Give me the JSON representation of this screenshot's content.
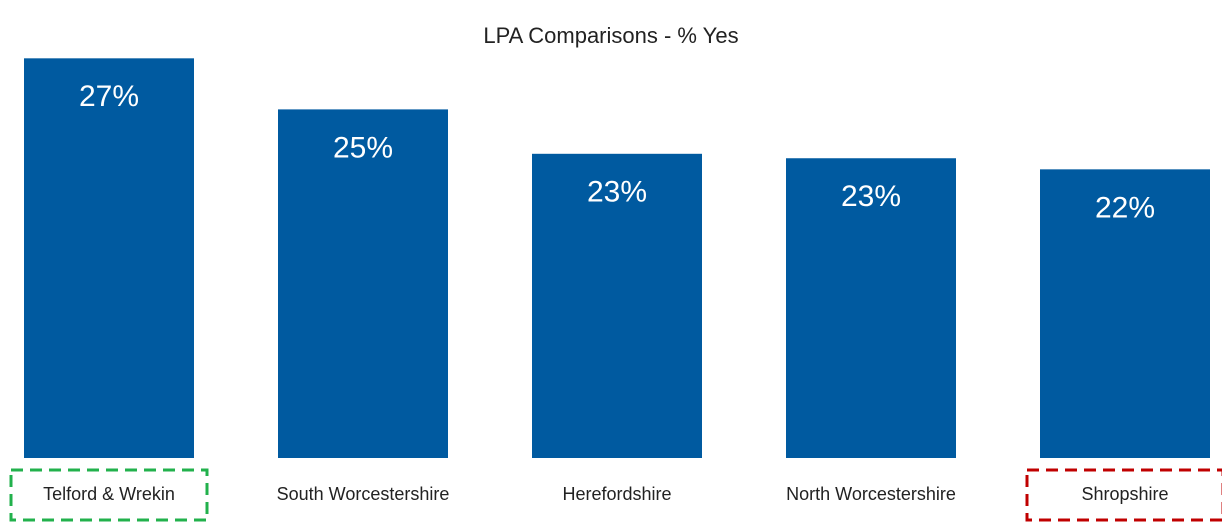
{
  "chart_data": {
    "type": "bar",
    "title": "LPA Comparisons - % Yes",
    "categories": [
      "Telford & Wrekin",
      "South Worcestershire",
      "Herefordshire",
      "North Worcestershire",
      "Shropshire"
    ],
    "values": [
      27,
      24.7,
      22.7,
      22.5,
      22
    ],
    "value_labels": [
      "27%",
      "25%",
      "23%",
      "23%",
      "22%"
    ],
    "color": "#005aa0",
    "label_outline_colors": [
      "#22b14c",
      null,
      null,
      null,
      "#c00000"
    ],
    "ylim": [
      9,
      27.6
    ]
  }
}
